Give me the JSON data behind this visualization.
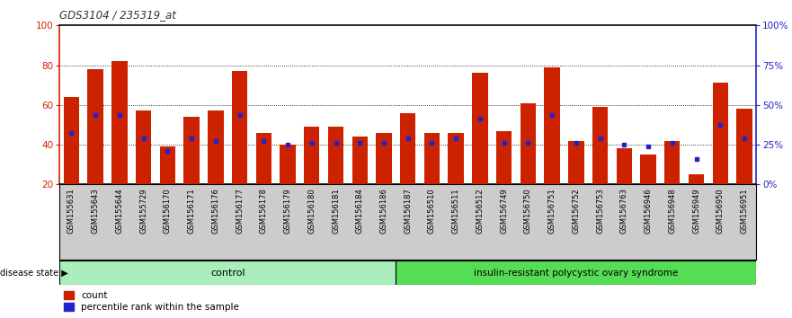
{
  "title": "GDS3104 / 235319_at",
  "categories": [
    "GSM155631",
    "GSM155643",
    "GSM155644",
    "GSM155729",
    "GSM156170",
    "GSM156171",
    "GSM156176",
    "GSM156177",
    "GSM156178",
    "GSM156179",
    "GSM156180",
    "GSM156181",
    "GSM156184",
    "GSM156186",
    "GSM156187",
    "GSM156510",
    "GSM156511",
    "GSM156512",
    "GSM156749",
    "GSM156750",
    "GSM156751",
    "GSM156752",
    "GSM156753",
    "GSM156763",
    "GSM156946",
    "GSM156948",
    "GSM156949",
    "GSM156950",
    "GSM156951"
  ],
  "bar_values": [
    64,
    78,
    82,
    57,
    39,
    54,
    57,
    77,
    46,
    40,
    49,
    49,
    44,
    46,
    56,
    46,
    46,
    76,
    47,
    61,
    79,
    42,
    59,
    38,
    35,
    42,
    25,
    71,
    58
  ],
  "dot_values": [
    46,
    55,
    55,
    43,
    37,
    43,
    42,
    55,
    42,
    40,
    41,
    41,
    41,
    41,
    43,
    41,
    43,
    53,
    41,
    41,
    55,
    41,
    43,
    40,
    39,
    41,
    33,
    50,
    43
  ],
  "bar_color": "#CC2200",
  "dot_color": "#2222CC",
  "group1_label": "control",
  "group2_label": "insulin-resistant polycystic ovary syndrome",
  "group1_count": 14,
  "group2_count": 15,
  "disease_state_label": "disease state",
  "ymin": 20,
  "ymax": 100,
  "yticks_left": [
    20,
    40,
    60,
    80,
    100
  ],
  "yticks_right_pct": [
    0,
    25,
    50,
    75,
    100
  ],
  "yticks_right_labels": [
    "0%",
    "25%",
    "50%",
    "75%",
    "100%"
  ],
  "grid_values": [
    40,
    60,
    80
  ],
  "legend_count_label": "count",
  "legend_pct_label": "percentile rank within the sample",
  "bar_width": 0.65,
  "group1_color": "#AAEEBB",
  "group2_color": "#55DD55",
  "bg_color": "#CCCCCC",
  "title_color": "#444444"
}
